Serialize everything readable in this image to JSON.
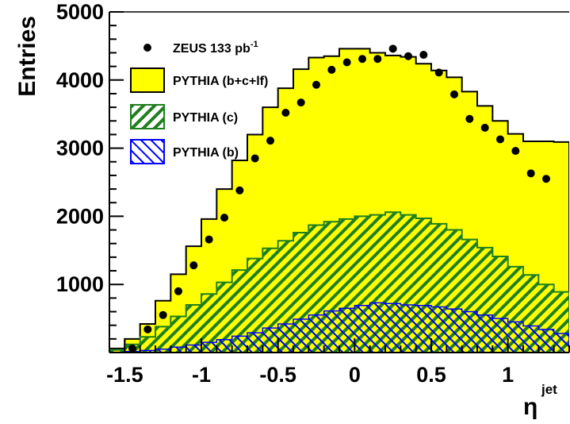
{
  "chart_data": {
    "type": "histogram",
    "xlabel": "η",
    "xlabel_superscript": "jet",
    "ylabel": "Entries",
    "xlim": [
      -1.6,
      1.4
    ],
    "ylim": [
      0,
      5000
    ],
    "bin_edges": [
      -1.6,
      -1.5,
      -1.4,
      -1.3,
      -1.2,
      -1.1,
      -1.0,
      -0.9,
      -0.8,
      -0.7,
      -0.6,
      -0.5,
      -0.4,
      -0.3,
      -0.2,
      -0.1,
      0.0,
      0.1,
      0.2,
      0.3,
      0.4,
      0.5,
      0.6,
      0.7,
      0.8,
      0.9,
      1.0,
      1.1,
      1.2,
      1.3,
      1.4
    ],
    "x_ticks": [
      {
        "value": -1.5,
        "label": "-1.5"
      },
      {
        "value": -1.0,
        "label": "-1"
      },
      {
        "value": -0.5,
        "label": "-0.5"
      },
      {
        "value": 0.0,
        "label": "0"
      },
      {
        "value": 0.5,
        "label": "0.5"
      },
      {
        "value": 1.0,
        "label": "1"
      }
    ],
    "y_ticks": [
      {
        "value": 1000,
        "label": "1000"
      },
      {
        "value": 2000,
        "label": "2000"
      },
      {
        "value": 3000,
        "label": "3000"
      },
      {
        "value": 4000,
        "label": "4000"
      },
      {
        "value": 5000,
        "label": "5000"
      }
    ],
    "legend": [
      {
        "key": "data",
        "text": "ZEUS 133 pb",
        "sup": "-1"
      },
      {
        "key": "total",
        "text": "PYTHIA (b+c+lf)"
      },
      {
        "key": "charm",
        "text": "PYTHIA (c)"
      },
      {
        "key": "beauty",
        "text": "PYTHIA (b)"
      }
    ],
    "series": {
      "total": {
        "fill": "#ffff00",
        "line": "#000000",
        "values": [
          60,
          200,
          420,
          760,
          1150,
          1560,
          1960,
          2400,
          2820,
          3200,
          3600,
          3880,
          4160,
          4330,
          4350,
          4460,
          4460,
          4400,
          4360,
          4340,
          4240,
          4140,
          4040,
          3830,
          3620,
          3400,
          3210,
          3100,
          3100,
          3090
        ]
      },
      "charm": {
        "fill": "#1f7f1f",
        "line": "#1f7f1f",
        "values": [
          40,
          120,
          230,
          380,
          530,
          700,
          860,
          1030,
          1210,
          1380,
          1530,
          1640,
          1760,
          1870,
          1920,
          1960,
          2000,
          2020,
          2060,
          2020,
          1970,
          1890,
          1800,
          1660,
          1540,
          1410,
          1260,
          1140,
          1000,
          890
        ]
      },
      "beauty": {
        "fill": "#0000ff",
        "line": "#0000ff",
        "values": [
          5,
          15,
          30,
          50,
          80,
          110,
          150,
          190,
          240,
          290,
          360,
          420,
          490,
          550,
          610,
          650,
          690,
          730,
          720,
          700,
          690,
          670,
          640,
          600,
          550,
          500,
          450,
          390,
          340,
          280
        ]
      },
      "data": {
        "marker": "#000000",
        "x": [
          -1.45,
          -1.35,
          -1.25,
          -1.15,
          -1.05,
          -0.95,
          -0.85,
          -0.75,
          -0.65,
          -0.55,
          -0.45,
          -0.35,
          -0.25,
          -0.15,
          -0.05,
          0.05,
          0.15,
          0.25,
          0.35,
          0.45,
          0.55,
          0.65,
          0.75,
          0.85,
          0.95,
          1.05,
          1.15,
          1.25
        ],
        "y": [
          60,
          340,
          550,
          900,
          1280,
          1660,
          1980,
          2380,
          2850,
          3110,
          3520,
          3670,
          3930,
          4150,
          4260,
          4310,
          4310,
          4460,
          4350,
          4370,
          4110,
          3790,
          3430,
          3300,
          3130,
          2960,
          2630,
          2550
        ]
      }
    }
  }
}
